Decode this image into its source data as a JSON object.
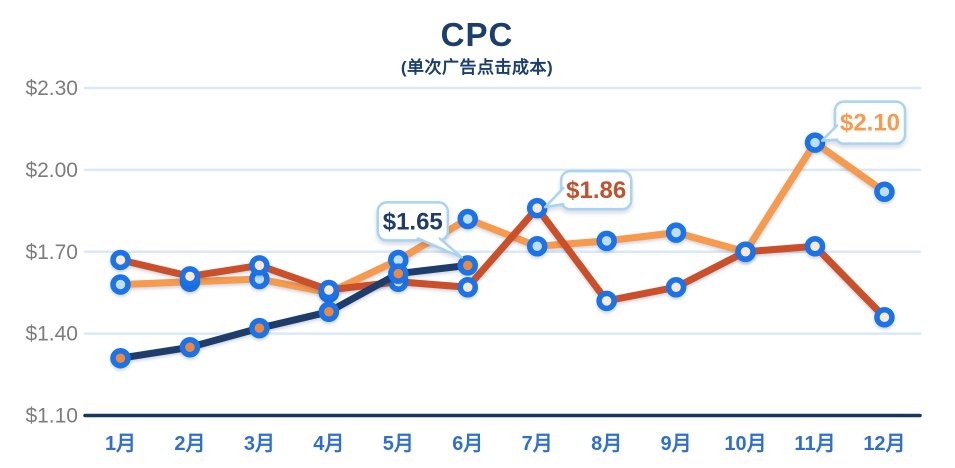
{
  "header": {
    "title": "CPC",
    "subtitle": "(单次广告点击成本)"
  },
  "chart_data": {
    "type": "line",
    "title": "CPC",
    "subtitle": "(单次广告点击成本)",
    "x_categories": [
      "1月",
      "2月",
      "3月",
      "4月",
      "5月",
      "6月",
      "7月",
      "8月",
      "9月",
      "10月",
      "11月",
      "12月"
    ],
    "y_ticks": {
      "labels": [
        "$2.30",
        "$2.00",
        "$1.70",
        "$1.40",
        "$1.10"
      ],
      "values": [
        2.3,
        2.0,
        1.7,
        1.4,
        1.1
      ]
    },
    "ylim": [
      1.1,
      2.3
    ],
    "grid": "horizontal",
    "legend": "none",
    "series": [
      {
        "name": "light-orange-line",
        "color": "#f79a4d",
        "marker_fill": "#bfdef8",
        "values": [
          1.58,
          1.59,
          1.6,
          1.55,
          1.67,
          1.82,
          1.72,
          1.74,
          1.77,
          1.7,
          2.1,
          1.92
        ]
      },
      {
        "name": "dark-orange-line",
        "color": "#cb4f28",
        "marker_fill": "#fbe8d9",
        "values": [
          1.67,
          1.61,
          1.65,
          1.56,
          1.59,
          1.57,
          1.86,
          1.52,
          1.57,
          1.7,
          1.72,
          1.46
        ]
      },
      {
        "name": "navy-line",
        "color": "#1f3d6b",
        "marker_fill": "#f0883c",
        "values": [
          1.31,
          1.35,
          1.42,
          1.48,
          1.62,
          1.65,
          null,
          null,
          null,
          null,
          null,
          null
        ]
      }
    ],
    "annotations": [
      {
        "label": "$1.65",
        "series": "navy-line",
        "x_index": 5,
        "text_color": "#1f3d6b",
        "placement": "above-left"
      },
      {
        "label": "$1.86",
        "series": "dark-orange-line",
        "x_index": 6,
        "text_color": "#c4502c",
        "placement": "above-right"
      },
      {
        "label": "$2.10",
        "series": "light-orange-line",
        "x_index": 10,
        "text_color": "#f79a4d",
        "placement": "right"
      }
    ],
    "colors": {
      "marker_ring": "#1a73e8",
      "gridline": "#d9e9f7",
      "axis_line": "#17375e",
      "y_tick_label": "#7d7d7d",
      "x_tick_label": "#2e6fd4",
      "title": "#1a3e6f",
      "callout_border": "#a8d3f2",
      "callout_fill": "#ffffff"
    }
  }
}
